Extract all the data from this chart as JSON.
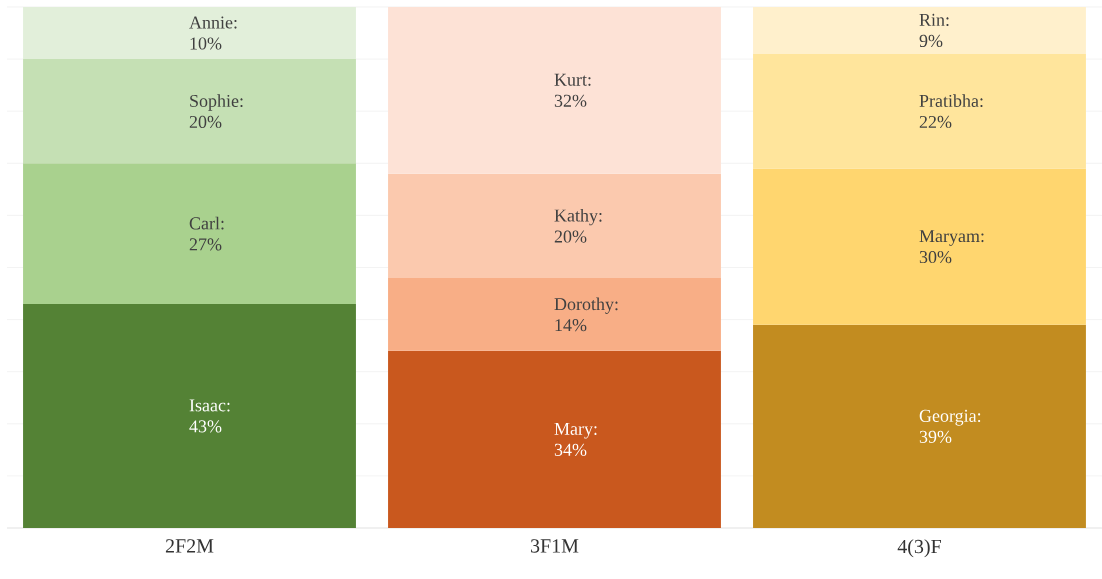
{
  "chart_data": {
    "type": "bar",
    "stacked": true,
    "categories": [
      "2F2M",
      "3F1M",
      "4(3)F"
    ],
    "series": [
      {
        "values": [
          43,
          34,
          39
        ],
        "colors": [
          "#548235",
          "#c9581e",
          "#c28c20"
        ],
        "value_labels": [
          "Isaac: 43%",
          "Mary: 34%",
          "Georgia: 39%"
        ]
      },
      {
        "values": [
          27,
          14,
          30
        ],
        "colors": [
          "#a9d18e",
          "#f8ae86",
          "#ffd66f"
        ],
        "value_labels": [
          "Carl: 27%",
          "Dorothy: 14%",
          "Maryam: 30%"
        ]
      },
      {
        "values": [
          20,
          20,
          22
        ],
        "colors": [
          "#c5e0b4",
          "#fbc9ae",
          "#ffe59c"
        ],
        "value_labels": [
          "Sophie: 20%",
          "Kathy: 20%",
          "Pratibha: 22%"
        ]
      },
      {
        "values": [
          10,
          32,
          9
        ],
        "colors": [
          "#e2efda",
          "#fde2d6",
          "#fff0cc"
        ],
        "value_labels": [
          "Annie: 10%",
          "Kurt: 32%",
          "Rin: 9%"
        ]
      }
    ],
    "ylim": [
      0,
      100
    ],
    "yticks": [
      {
        "value": 0,
        "label": null
      },
      {
        "value": 10,
        "label": null
      },
      {
        "value": 20,
        "label": null
      },
      {
        "value": 30,
        "label": null
      },
      {
        "value": 40,
        "label": null
      },
      {
        "value": 50,
        "label": null
      },
      {
        "value": 60,
        "label": null
      },
      {
        "value": 70,
        "label": null
      },
      {
        "value": 80,
        "label": null
      },
      {
        "value": 90,
        "label": null
      },
      {
        "value": 100,
        "label": null
      }
    ],
    "grid": "y",
    "tick_labels": "x"
  }
}
